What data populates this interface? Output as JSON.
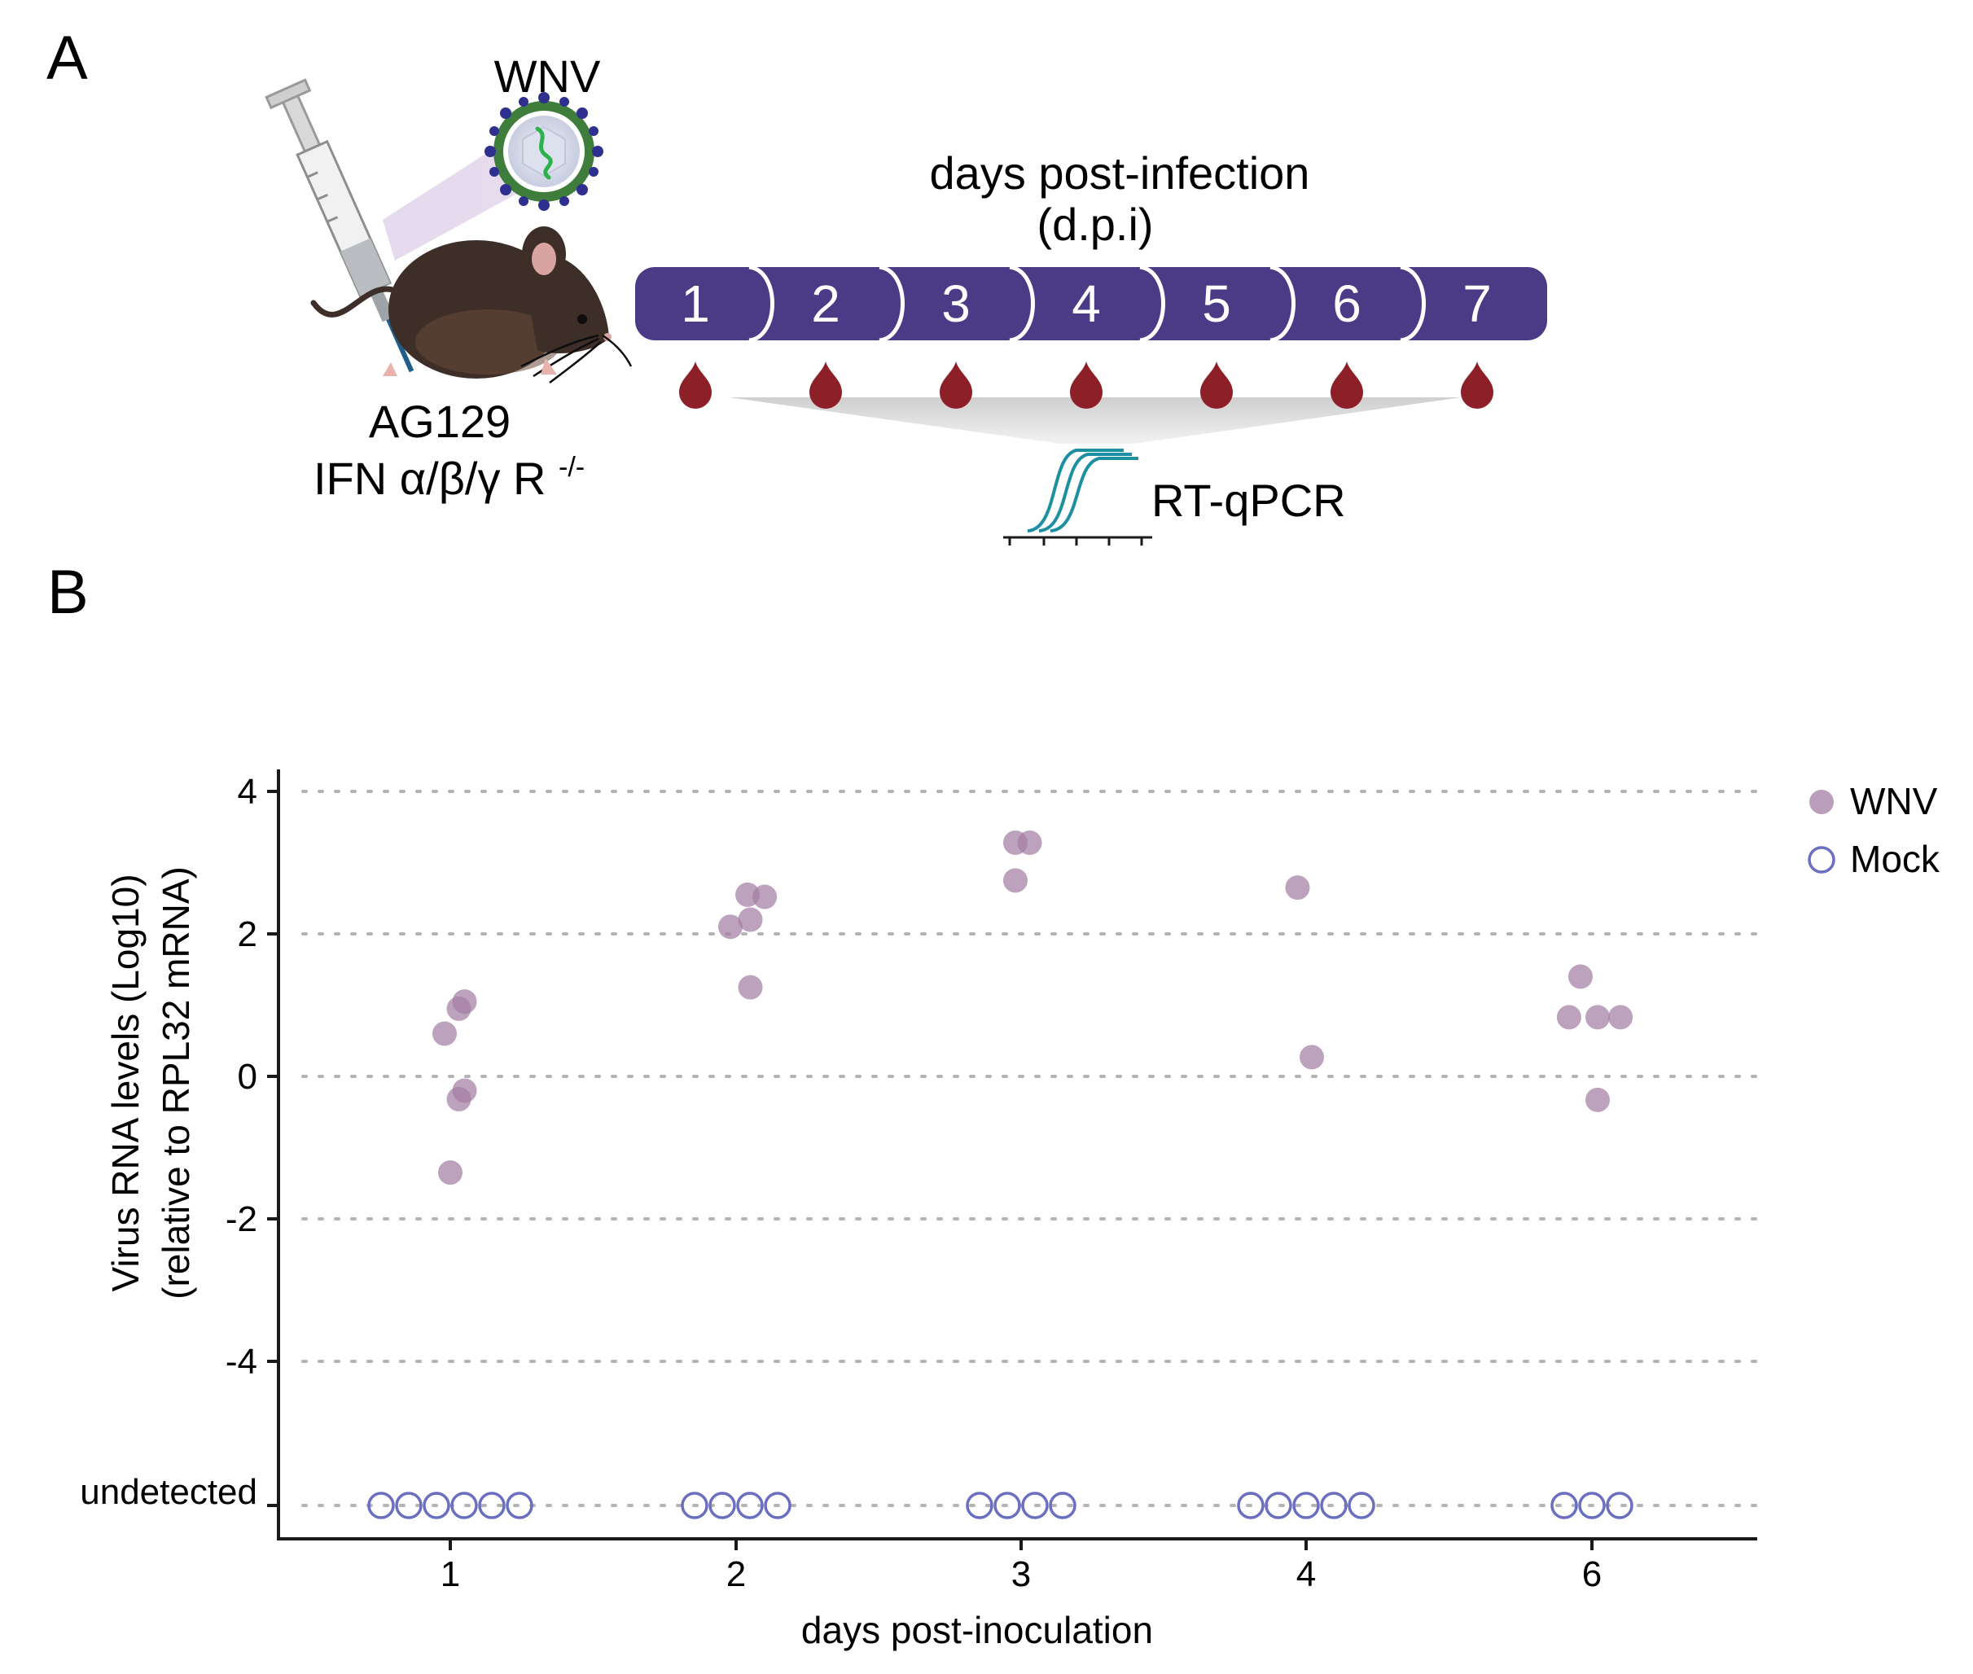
{
  "panel_a": {
    "label": "A",
    "virus_label": "WNV",
    "mouse_strain": "AG129",
    "mouse_genotype": "IFN α/β/γ R",
    "genotype_superscript": "-/-",
    "timeline_title_line1": "days post-infection",
    "timeline_title_line2": "(d.p.i)",
    "days": [
      "1",
      "2",
      "3",
      "4",
      "5",
      "6",
      "7"
    ],
    "assay_label": "RT-qPCR",
    "colors": {
      "timeline": "#4b3a86",
      "blood": "#8c1f28",
      "mouse": "#3d2e27",
      "virus_outer": "#3f7d3c",
      "virus_spikes": "#2f2f8f",
      "pcr_curve": "#1e8fa3"
    }
  },
  "panel_b": {
    "label": "B"
  },
  "chart_data": {
    "type": "scatter",
    "title": "",
    "xlabel": "days post-inoculation",
    "ylabel_line1": "Virus RNA levels (Log10)",
    "ylabel_line2": "(relative to RPL32 mRNA)",
    "categories": [
      "1",
      "2",
      "3",
      "4",
      "6"
    ],
    "y_ticks": [
      4,
      2,
      0,
      -2,
      -4
    ],
    "y_tick_labels": [
      "4",
      "2",
      "0",
      "-2",
      "-4"
    ],
    "undetected_label": "undetected",
    "ylim": [
      -6.4,
      4.3
    ],
    "grid": true,
    "legend_position": "top-right",
    "series": [
      {
        "name": "WNV",
        "marker": "filled-circle",
        "color": "#a47ea4",
        "points": [
          {
            "x": "1",
            "y": 1.05,
            "jitter": 0.05
          },
          {
            "x": "1",
            "y": 0.95,
            "jitter": 0.03
          },
          {
            "x": "1",
            "y": 0.6,
            "jitter": -0.02
          },
          {
            "x": "1",
            "y": -0.2,
            "jitter": 0.05
          },
          {
            "x": "1",
            "y": -0.32,
            "jitter": 0.03
          },
          {
            "x": "1",
            "y": -1.35,
            "jitter": 0.0
          },
          {
            "x": "2",
            "y": 2.55,
            "jitter": 0.04
          },
          {
            "x": "2",
            "y": 2.52,
            "jitter": 0.1
          },
          {
            "x": "2",
            "y": 2.2,
            "jitter": 0.05
          },
          {
            "x": "2",
            "y": 2.1,
            "jitter": -0.02
          },
          {
            "x": "2",
            "y": 1.25,
            "jitter": 0.05
          },
          {
            "x": "3",
            "y": 3.28,
            "jitter": -0.02
          },
          {
            "x": "3",
            "y": 3.28,
            "jitter": 0.03
          },
          {
            "x": "3",
            "y": 2.75,
            "jitter": -0.02
          },
          {
            "x": "4",
            "y": 2.65,
            "jitter": -0.03
          },
          {
            "x": "4",
            "y": 0.27,
            "jitter": 0.02
          },
          {
            "x": "6",
            "y": 1.4,
            "jitter": -0.04
          },
          {
            "x": "6",
            "y": 0.83,
            "jitter": -0.08
          },
          {
            "x": "6",
            "y": 0.83,
            "jitter": 0.02
          },
          {
            "x": "6",
            "y": 0.83,
            "jitter": 0.1
          },
          {
            "x": "6",
            "y": -0.33,
            "jitter": 0.02
          }
        ]
      },
      {
        "name": "Mock",
        "marker": "open-circle",
        "color": "#6b6fbf",
        "value_label": "undetected",
        "counts": {
          "1": 6,
          "2": 4,
          "3": 4,
          "4": 5,
          "6": 3
        }
      }
    ]
  }
}
